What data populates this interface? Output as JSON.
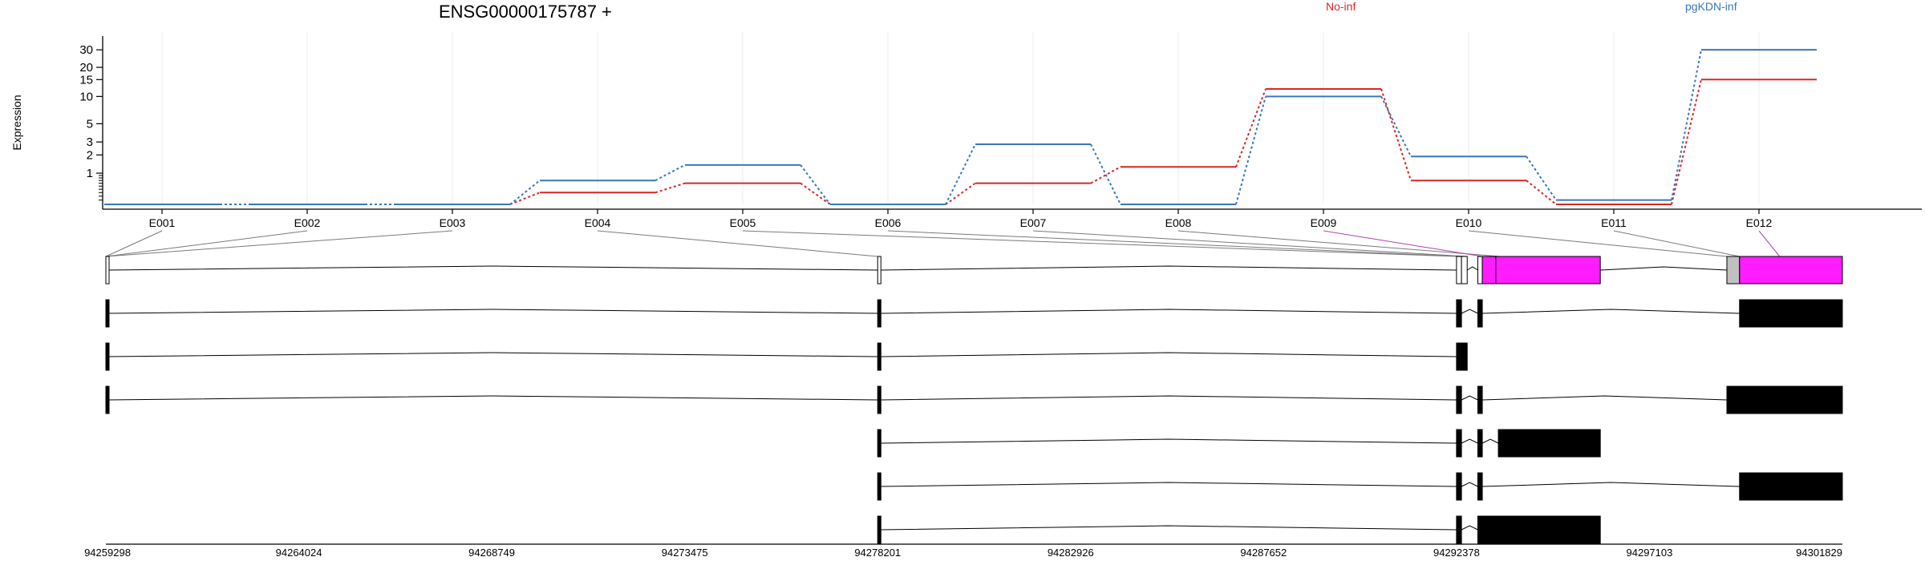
{
  "colors": {
    "no_inf": "#d62728",
    "pgkdn_inf": "#3a77b8",
    "highlight": "#ff1cff",
    "exon": "#000000",
    "grey_exon": "#c0c0c0"
  },
  "header": {
    "title": "ENSG00000175787 +"
  },
  "chart_data": {
    "type": "line",
    "title": "ENSG00000175787 +",
    "ylabel": "Expression",
    "yscale": "log",
    "y_ticks": [
      "1",
      "2",
      "3",
      "5",
      "10",
      "15",
      "20",
      "30"
    ],
    "ylim": [
      0,
      45
    ],
    "categories": [
      "E001",
      "E002",
      "E003",
      "E004",
      "E005",
      "E006",
      "E007",
      "E008",
      "E009",
      "E010",
      "E011",
      "E012"
    ],
    "highlight_exons": [
      "E009",
      "E012"
    ],
    "series": [
      {
        "name": "No-inf",
        "values": [
          0,
          0,
          0,
          0.3,
          0.6,
          0,
          0.6,
          1.3,
          12,
          0.7,
          0,
          15
        ]
      },
      {
        "name": "pgKDN-inf",
        "values": [
          0,
          0,
          0,
          0.7,
          1.4,
          0,
          2.8,
          0,
          10,
          1.9,
          0.1,
          30
        ]
      }
    ],
    "genomic_coordinates": [
      "94259298",
      "94264024",
      "94268749",
      "94273475",
      "94278201",
      "94282926",
      "94287652",
      "94292378",
      "94297103",
      "94301829"
    ]
  }
}
